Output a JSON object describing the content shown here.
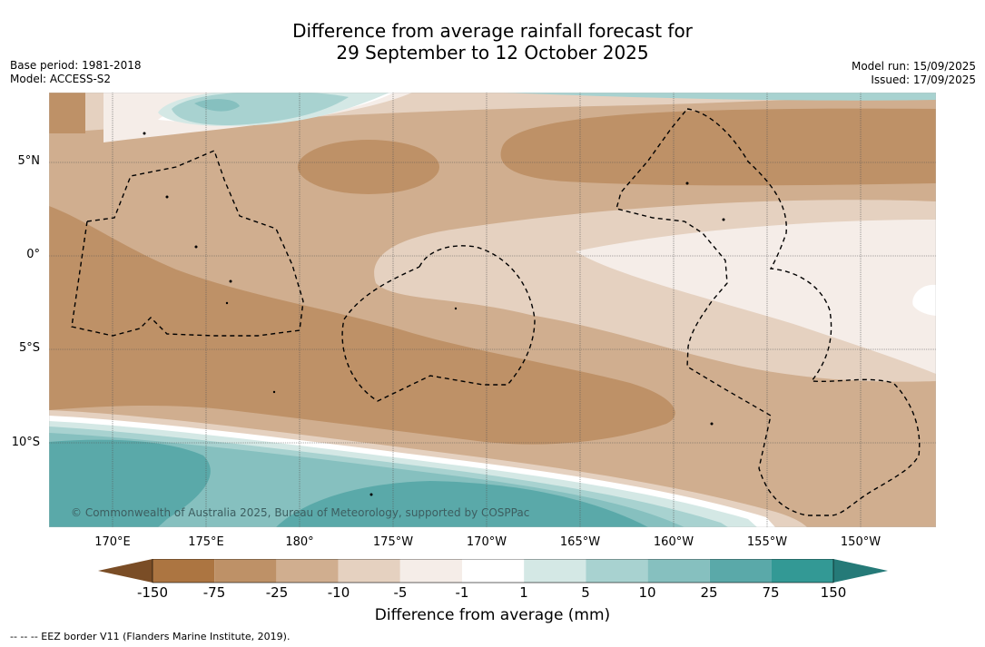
{
  "title": {
    "line1": "Difference from average rainfall forecast for",
    "line2": "29 September to 12 October 2025"
  },
  "meta_left": {
    "base_period": "Base period: 1981-2018",
    "model": "Model: ACCESS-S2"
  },
  "meta_right": {
    "model_run": "Model run: 15/09/2025",
    "issued": "Issued: 17/09/2025"
  },
  "map": {
    "region": "Central Pacific",
    "lat_labels": [
      "5°N",
      "0°",
      "5°S",
      "10°S"
    ],
    "lon_labels": [
      "170°E",
      "175°E",
      "180°",
      "175°W",
      "170°W",
      "165°W",
      "160°W",
      "155°W",
      "150°W"
    ],
    "copyright": "© Commonwealth of Australia 2025, Bureau of Meteorology, supported by COSPPac"
  },
  "colorbar": {
    "ticks": [
      "-150",
      "-75",
      "-25",
      "-10",
      "-5",
      "-1",
      "1",
      "5",
      "10",
      "25",
      "75",
      "150"
    ],
    "colors": [
      "#7a4d26",
      "#ac7541",
      "#be9167",
      "#d0ae8f",
      "#e5d1c0",
      "#f5ede8",
      "#ffffff",
      "#d4e8e5",
      "#a8d2d0",
      "#86c0bf",
      "#5aa9a9",
      "#339995",
      "#257a78"
    ],
    "label": "Difference from average (mm)"
  },
  "footnote": "--  --  -- EEZ border V11 (Flanders Marine Institute, 2019)."
}
